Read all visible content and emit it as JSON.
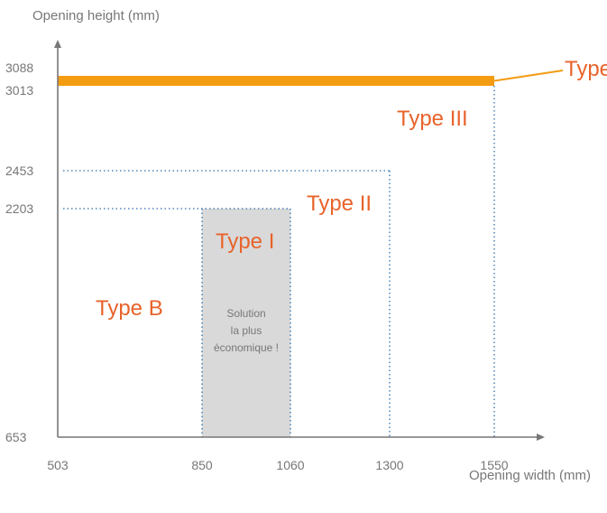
{
  "chart_data": {
    "type": "area",
    "xlabel": "Opening width (mm)",
    "ylabel": "Opening height (mm)",
    "x_ticks": [
      "503",
      "850",
      "1060",
      "1300",
      "1550"
    ],
    "y_ticks": [
      "653",
      "2203",
      "2453",
      "3013",
      "3088"
    ],
    "xlim": [
      503,
      1550
    ],
    "ylim": [
      653,
      3088
    ],
    "regions": [
      {
        "name": "Type B",
        "x_max": 1550,
        "y_max": 3088
      },
      {
        "name": "Type I",
        "x_min": 850,
        "x_max": 1060,
        "y_max": 2203,
        "note": [
          "Solution",
          "la plus",
          "économique !"
        ]
      },
      {
        "name": "Type II",
        "x_max": 1300,
        "y_max": 2453
      },
      {
        "name": "Type III",
        "x_max": 1550,
        "y_max": 3013
      },
      {
        "name": "Type",
        "x_max": 1550,
        "y_min": 3013,
        "y_max": 3088
      }
    ],
    "colors": {
      "accent": "#e8632b",
      "band": "#f39c12",
      "shade": "#d9d9d9",
      "dotted": "#2e6fb0",
      "axis": "#777777"
    }
  }
}
